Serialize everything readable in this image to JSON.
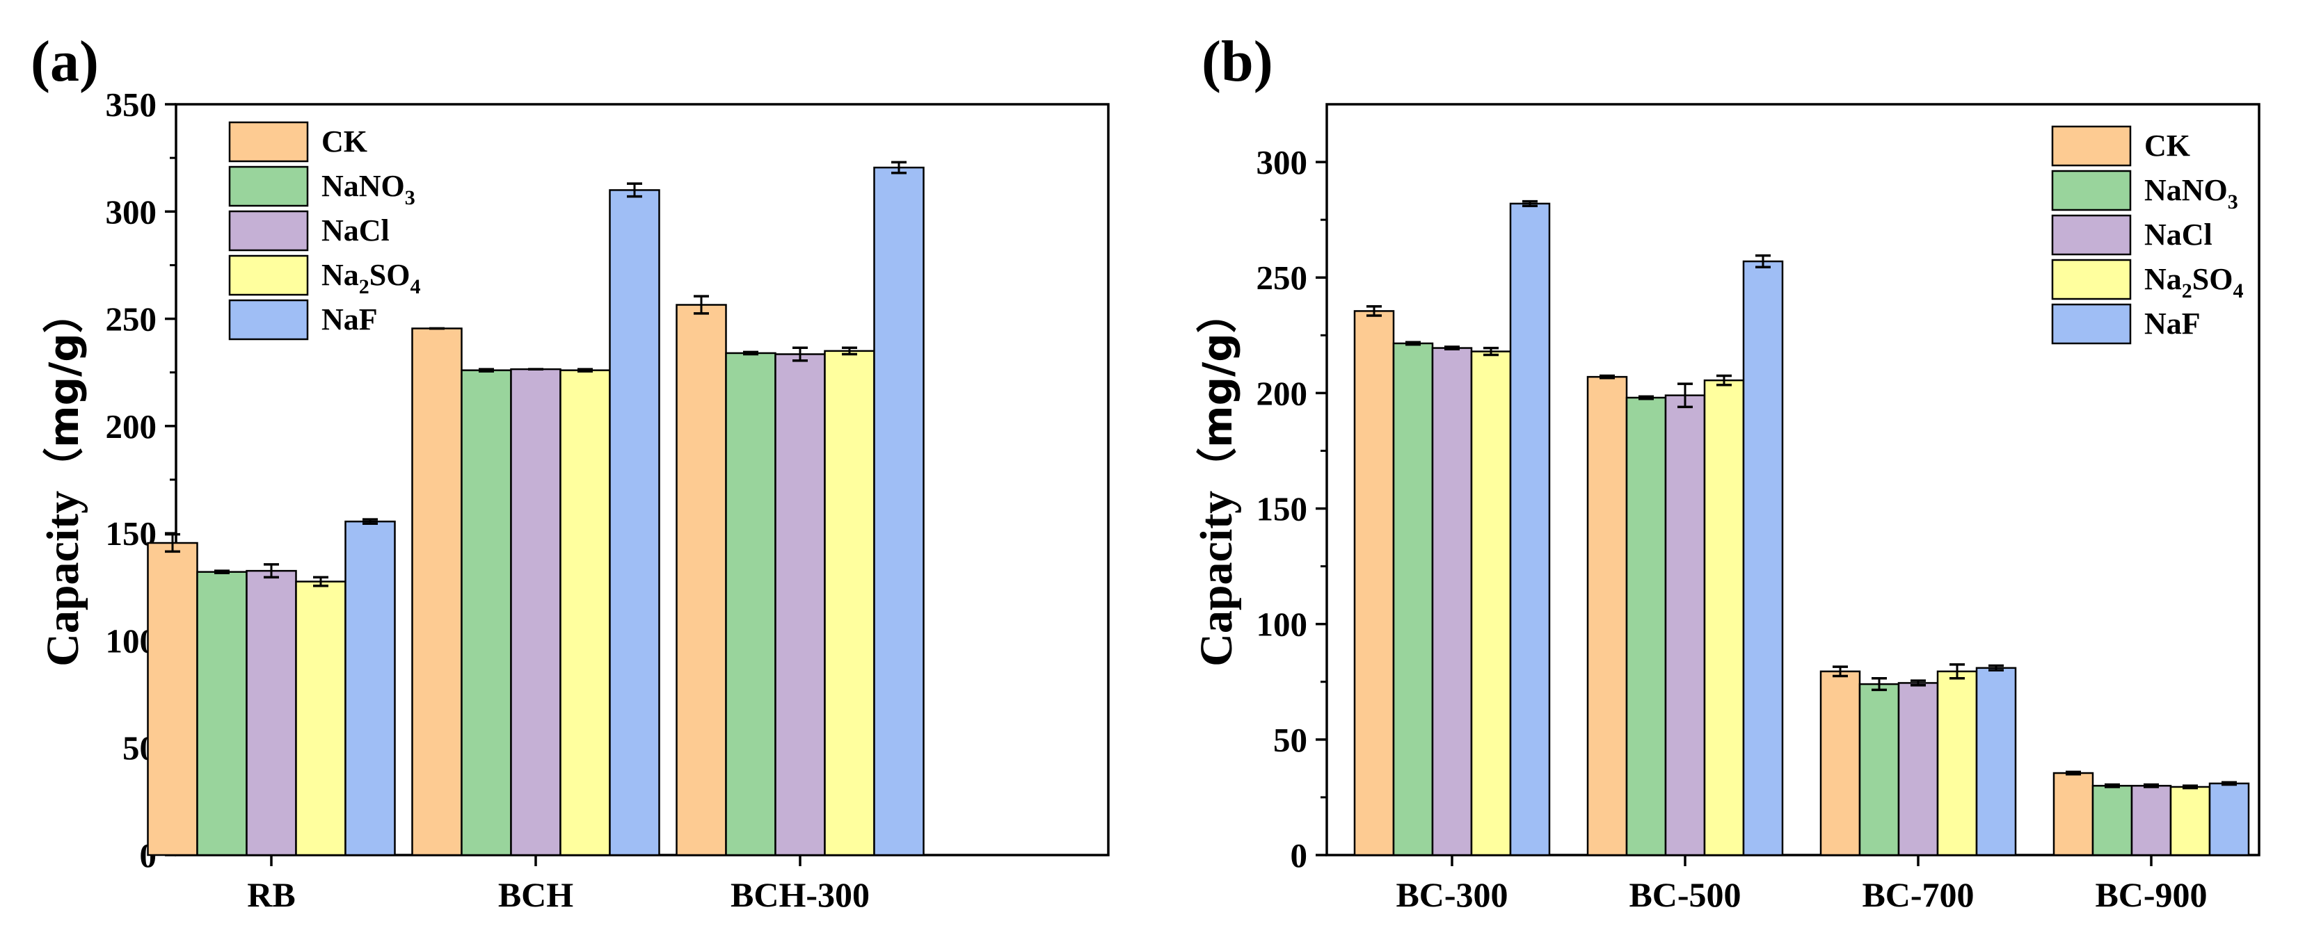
{
  "chart_data": [
    {
      "panel_label": "(a)",
      "type": "bar",
      "title": "",
      "xlabel": "",
      "ylabel_main": "Capacity",
      "ylabel_unit": "（mg/g）",
      "ylim": [
        0,
        350
      ],
      "yticks": [
        0,
        50,
        100,
        150,
        200,
        250,
        300,
        350
      ],
      "categories": [
        "RB",
        "BCH",
        "BCH-300"
      ],
      "legend_position": "top-left",
      "series": [
        {
          "name": "CK",
          "label_parts": [
            [
              "CK",
              "n"
            ]
          ],
          "color": "#FDCB92",
          "values": [
            145.5,
            245.5,
            256.5
          ],
          "errors": [
            4,
            0,
            4
          ]
        },
        {
          "name": "NaNO3",
          "label_parts": [
            [
              "NaNO",
              "n"
            ],
            [
              "3",
              "sub"
            ]
          ],
          "color": "#99D49C",
          "values": [
            132,
            226,
            234
          ],
          "errors": [
            0.5,
            0.5,
            0.5
          ]
        },
        {
          "name": "NaCl",
          "label_parts": [
            [
              "NaCl",
              "n"
            ]
          ],
          "color": "#C5B0D5",
          "values": [
            132.5,
            226.5,
            233.5
          ],
          "errors": [
            3,
            0,
            3
          ]
        },
        {
          "name": "Na2SO4",
          "label_parts": [
            [
              "Na",
              "n"
            ],
            [
              "2",
              "sub"
            ],
            [
              "SO",
              "n"
            ],
            [
              "4",
              "sub"
            ]
          ],
          "color": "#FFFF9E",
          "values": [
            127.5,
            226,
            235
          ],
          "errors": [
            2,
            0.5,
            1.5
          ]
        },
        {
          "name": "NaF",
          "label_parts": [
            [
              "NaF",
              "n"
            ]
          ],
          "color": "#9FBEF5",
          "values": [
            155.5,
            310,
            320.5
          ],
          "errors": [
            1,
            3,
            2.5
          ]
        }
      ]
    },
    {
      "panel_label": "(b)",
      "type": "bar",
      "title": "",
      "xlabel": "",
      "ylabel_main": "Capacity",
      "ylabel_unit": "（mg/g）",
      "ylim": [
        0,
        325
      ],
      "yticks": [
        0,
        50,
        100,
        150,
        200,
        250,
        300
      ],
      "categories": [
        "BC-300",
        "BC-500",
        "BC-700",
        "BC-900"
      ],
      "legend_position": "top-right",
      "series": [
        {
          "name": "CK",
          "label_parts": [
            [
              "CK",
              "n"
            ]
          ],
          "color": "#FDCB92",
          "values": [
            235.5,
            207,
            79.5,
            35.5
          ],
          "errors": [
            2,
            0.5,
            2,
            0.5
          ]
        },
        {
          "name": "NaNO3",
          "label_parts": [
            [
              "NaNO",
              "n"
            ],
            [
              "3",
              "sub"
            ]
          ],
          "color": "#99D49C",
          "values": [
            221.5,
            198,
            74,
            30
          ],
          "errors": [
            0.5,
            0.5,
            2.5,
            0.5
          ]
        },
        {
          "name": "NaCl",
          "label_parts": [
            [
              "NaCl",
              "n"
            ]
          ],
          "color": "#C5B0D5",
          "values": [
            219.5,
            199,
            74.5,
            30
          ],
          "errors": [
            0.5,
            5,
            1,
            0.5
          ]
        },
        {
          "name": "Na2SO4",
          "label_parts": [
            [
              "Na",
              "n"
            ],
            [
              "2",
              "sub"
            ],
            [
              "SO",
              "n"
            ],
            [
              "4",
              "sub"
            ]
          ],
          "color": "#FFFF9E",
          "values": [
            218,
            205.5,
            79.5,
            29.5
          ],
          "errors": [
            1.5,
            2,
            3,
            0.5
          ]
        },
        {
          "name": "NaF",
          "label_parts": [
            [
              "NaF",
              "n"
            ]
          ],
          "color": "#9FBEF5",
          "values": [
            282,
            257,
            81,
            31
          ],
          "errors": [
            1,
            2.5,
            1,
            0.5
          ]
        }
      ]
    }
  ]
}
